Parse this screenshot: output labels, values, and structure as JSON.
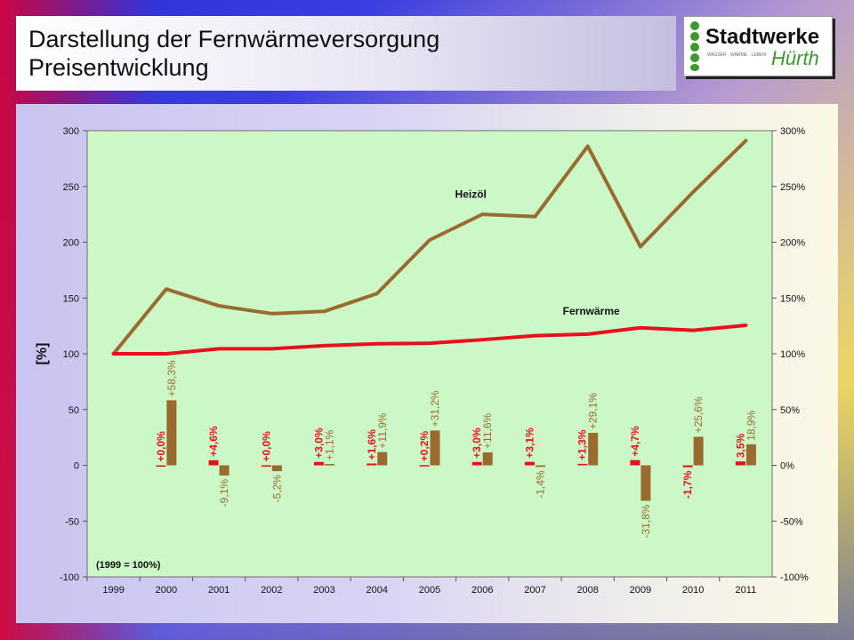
{
  "title": {
    "line1": "Darstellung der Fernwärmeversorgung",
    "line2": "Preisentwicklung"
  },
  "logo": {
    "name": "Stadtwerke",
    "script": "Hürth",
    "tagline": "WASSER · WÄRME · LEBEN",
    "colors": {
      "green": "#3a9a2a",
      "text": "#111111"
    }
  },
  "chart_data": {
    "type": "line",
    "base_note": "(1999 = 100%)",
    "ylabel_left": "[%]",
    "categories": [
      "1999",
      "2000",
      "2001",
      "2002",
      "2003",
      "2004",
      "2005",
      "2006",
      "2007",
      "2008",
      "2009",
      "2010",
      "2011"
    ],
    "ylim_left": [
      -100,
      300
    ],
    "yticks_left": [
      "-100",
      "-50",
      "0",
      "50",
      "100",
      "150",
      "200",
      "250",
      "300"
    ],
    "yticks_right": [
      "-100%",
      "-50%",
      "0%",
      "50%",
      "100%",
      "150%",
      "200%",
      "250%",
      "300%"
    ],
    "grid": false,
    "plot_bg": "#ccf7c6",
    "series": [
      {
        "name": "Heizöl",
        "color": "#9a6b2e",
        "values": [
          100,
          158,
          143,
          136,
          138,
          154,
          202,
          225,
          223,
          286,
          196,
          245,
          291
        ]
      },
      {
        "name": "Fernwärme",
        "color": "#e8101c",
        "values": [
          100,
          100,
          104.5,
          104.5,
          107.3,
          109,
          109.5,
          112.6,
          116.2,
          117.6,
          123.3,
          121,
          125.5
        ]
      }
    ],
    "bars": [
      {
        "name": "Fernwärme change",
        "color": "#e8101c",
        "values": [
          null,
          0.0,
          4.6,
          0.0,
          3.0,
          1.6,
          0.2,
          3.0,
          3.1,
          1.3,
          4.7,
          -1.7,
          3.5
        ],
        "labels": [
          "",
          "+0,0%",
          "+4,6%",
          "+0,0%",
          "+3,0%",
          "+1,6%",
          "+0,2%",
          "+3,0%",
          "+3,1%",
          "+1,3%",
          "+4,7%",
          "-1,7%",
          "3,5%"
        ]
      },
      {
        "name": "Heizöl change",
        "color": "#9a6b2e",
        "values": [
          null,
          58.3,
          -9.1,
          -5.2,
          1.1,
          11.9,
          31.2,
          11.6,
          -1.4,
          29.1,
          -31.8,
          25.6,
          18.9
        ],
        "labels": [
          "",
          "+58,3%",
          "-9,1%",
          "-5,2%",
          "+1,1%",
          "+11,9%",
          "+31,2%",
          "+11,6%",
          "-1,4%",
          "+29,1%",
          "-31,8%",
          "+25,6%",
          "18,9%"
        ]
      }
    ]
  }
}
